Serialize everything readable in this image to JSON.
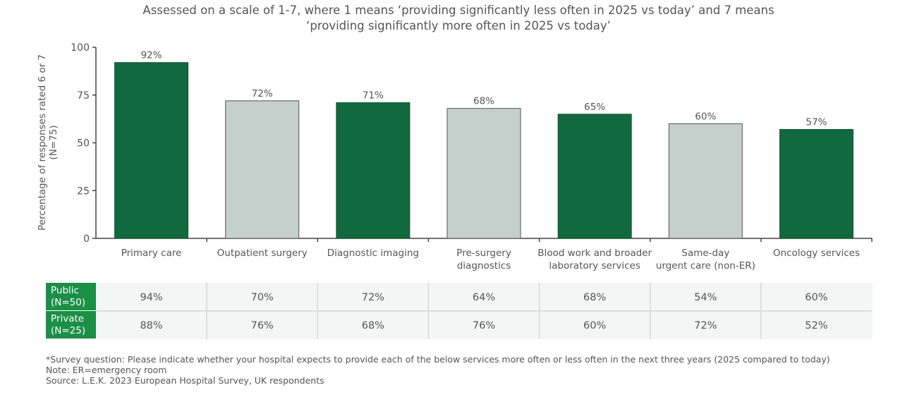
{
  "chart_data": {
    "type": "bar",
    "title_lines": [
      "Assessed on a scale of 1-7, where 1 means ‘providing significantly less often in 2025 vs today’ and 7 means",
      "‘providing significantly more often in 2025 vs today’"
    ],
    "ylabel_lines": [
      "Percentage of responses rated 6 or 7",
      "(N=75)"
    ],
    "ylim": [
      0,
      100
    ],
    "yticks": [
      "0",
      "25",
      "50",
      "75",
      "100"
    ],
    "categories": [
      [
        "Primary care"
      ],
      [
        "Outpatient surgery"
      ],
      [
        "Diagnostic imaging"
      ],
      [
        "Pre-surgery",
        "diagnostics"
      ],
      [
        "Blood work and broader",
        "laboratory services"
      ],
      [
        "Same-day",
        "urgent care (non-ER)"
      ],
      [
        "Oncology services"
      ]
    ],
    "values": [
      92,
      72,
      71,
      68,
      65,
      60,
      57
    ],
    "data_labels": [
      "92%",
      "72%",
      "71%",
      "68%",
      "65%",
      "60%",
      "57%"
    ],
    "bar_colors": [
      "#116a3d",
      "#c5cfcc",
      "#116a3d",
      "#c5cfcc",
      "#116a3d",
      "#c5cfcc",
      "#116a3d"
    ],
    "grid": false,
    "table": {
      "rows": [
        {
          "label": [
            "Public",
            "(N=50)"
          ],
          "values": [
            "94%",
            "70%",
            "72%",
            "64%",
            "68%",
            "54%",
            "60%"
          ]
        },
        {
          "label": [
            "Private",
            "(N=25)"
          ],
          "values": [
            "88%",
            "76%",
            "68%",
            "76%",
            "60%",
            "72%",
            "52%"
          ]
        }
      ],
      "label_color": "#1a8f46"
    }
  },
  "notes": [
    "*Survey question: Please indicate whether your hospital expects to provide each of the below services more often or less often in the next three years (2025 compared to today)",
    "Note: ER=emergency room",
    "Source: L.E.K. 2023 European Hospital Survey, UK respondents"
  ]
}
